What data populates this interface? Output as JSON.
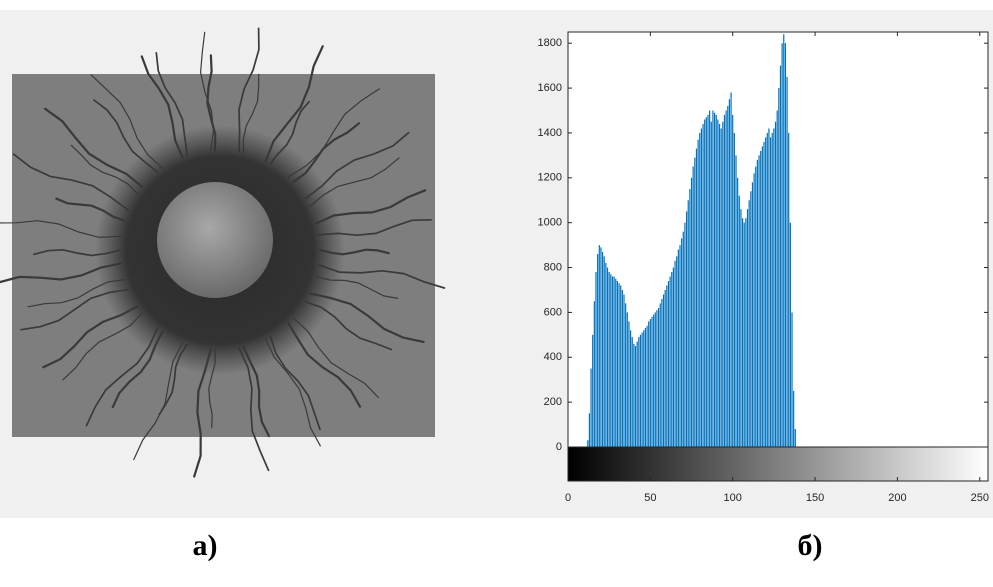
{
  "chart_data": {
    "type": "bar",
    "x": [
      12,
      13,
      14,
      15,
      16,
      17,
      18,
      19,
      20,
      21,
      22,
      23,
      24,
      25,
      26,
      27,
      28,
      29,
      30,
      31,
      32,
      33,
      34,
      35,
      36,
      37,
      38,
      39,
      40,
      41,
      42,
      43,
      44,
      45,
      46,
      47,
      48,
      49,
      50,
      51,
      52,
      53,
      54,
      55,
      56,
      57,
      58,
      59,
      60,
      61,
      62,
      63,
      64,
      65,
      66,
      67,
      68,
      69,
      70,
      71,
      72,
      73,
      74,
      75,
      76,
      77,
      78,
      79,
      80,
      81,
      82,
      83,
      84,
      85,
      86,
      87,
      88,
      89,
      90,
      91,
      92,
      93,
      94,
      95,
      96,
      97,
      98,
      99,
      100,
      101,
      102,
      103,
      104,
      105,
      106,
      107,
      108,
      109,
      110,
      111,
      112,
      113,
      114,
      115,
      116,
      117,
      118,
      119,
      120,
      121,
      122,
      123,
      124,
      125,
      126,
      127,
      128,
      129,
      130,
      131,
      132,
      133,
      134,
      135,
      136,
      137,
      138
    ],
    "values": [
      30,
      150,
      350,
      500,
      650,
      780,
      860,
      900,
      890,
      870,
      850,
      820,
      800,
      780,
      770,
      760,
      760,
      750,
      740,
      730,
      720,
      700,
      680,
      640,
      600,
      560,
      520,
      490,
      460,
      450,
      470,
      490,
      500,
      510,
      520,
      530,
      540,
      560,
      570,
      580,
      590,
      600,
      610,
      620,
      640,
      660,
      680,
      700,
      720,
      740,
      760,
      780,
      800,
      830,
      850,
      880,
      900,
      930,
      960,
      1000,
      1050,
      1100,
      1150,
      1200,
      1250,
      1290,
      1330,
      1370,
      1400,
      1420,
      1440,
      1460,
      1470,
      1480,
      1500,
      1450,
      1500,
      1490,
      1480,
      1460,
      1440,
      1420,
      1450,
      1480,
      1500,
      1520,
      1550,
      1580,
      1480,
      1400,
      1300,
      1200,
      1120,
      1060,
      1020,
      1000,
      1020,
      1060,
      1100,
      1140,
      1180,
      1220,
      1250,
      1280,
      1300,
      1320,
      1340,
      1360,
      1380,
      1400,
      1420,
      1380,
      1400,
      1420,
      1450,
      1500,
      1600,
      1700,
      1800,
      1840,
      1800,
      1650,
      1400,
      1000,
      600,
      250,
      80
    ],
    "color": "#0072bd",
    "xlim": [
      0,
      255
    ],
    "xticks": [
      0,
      50,
      100,
      150,
      200,
      250
    ],
    "ylim": [
      0,
      1850
    ],
    "yticks": [
      0,
      200,
      400,
      600,
      800,
      1000,
      1200,
      1400,
      1600,
      1800
    ]
  },
  "panel_labels": [
    "а)",
    "б)"
  ]
}
